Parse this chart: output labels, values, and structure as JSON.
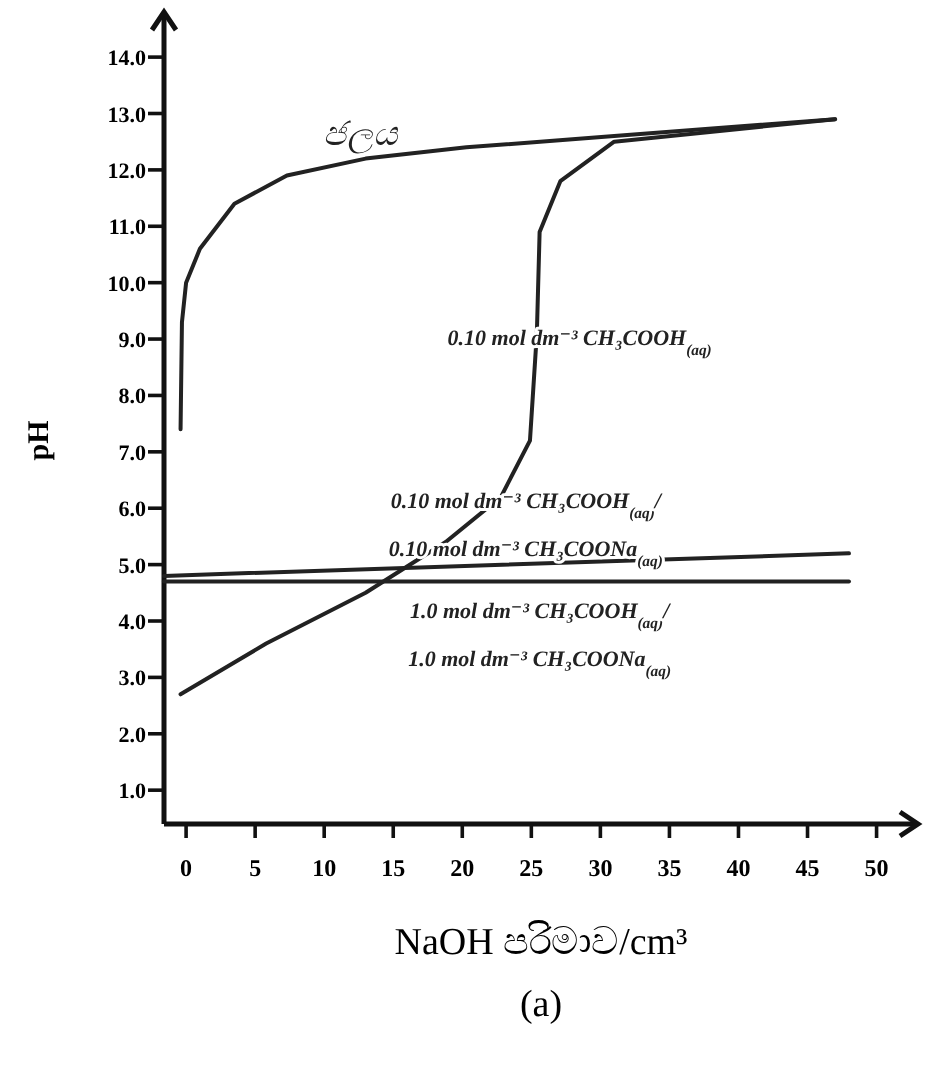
{
  "chart_data": {
    "type": "line",
    "xlabel": "NaOH පරිමාව/cm³",
    "ylabel": "pH",
    "annotations": [
      "(a)"
    ],
    "xlim": [
      -1.6,
      53
    ],
    "ylim": [
      0.4,
      14.8
    ],
    "xticks": [
      0,
      5,
      10,
      15,
      20,
      25,
      30,
      35,
      40,
      45,
      50
    ],
    "yticks": [
      {
        "value": 1,
        "label": "1.0"
      },
      {
        "value": 2,
        "label": "2.0"
      },
      {
        "value": 3,
        "label": "3.0"
      },
      {
        "value": 4,
        "label": "4.0"
      },
      {
        "value": 5,
        "label": "5.0"
      },
      {
        "value": 6,
        "label": "6.0"
      },
      {
        "value": 7,
        "label": "7.0"
      },
      {
        "value": 8,
        "label": "8.0"
      },
      {
        "value": 9,
        "label": "9.0"
      },
      {
        "value": 10,
        "label": "10.0"
      },
      {
        "value": 11,
        "label": "11.0"
      },
      {
        "value": 12,
        "label": "12.0"
      },
      {
        "value": 13,
        "label": "13.0"
      },
      {
        "value": 14,
        "label": "14.0"
      }
    ],
    "series": [
      {
        "name": "ජලය",
        "color": "#222222",
        "x": [
          -0.4,
          -0.3,
          0,
          1,
          3.5,
          7.3,
          13,
          20.3,
          31,
          47
        ],
        "values": [
          7.4,
          9.3,
          10.0,
          10.6,
          11.4,
          11.9,
          12.2,
          12.4,
          12.6,
          12.9
        ]
      },
      {
        "name": "0.10 mol dm⁻³ CH₃COOH$_{(aq)}$",
        "color": "#222222",
        "x": [
          -0.4,
          5.8,
          13,
          18.8,
          22.8,
          24.9,
          25.4,
          25.6,
          27.1,
          31,
          47
        ],
        "values": [
          2.7,
          3.6,
          4.5,
          5.4,
          6.2,
          7.2,
          9.1,
          10.9,
          11.8,
          12.5,
          12.9
        ]
      },
      {
        "name": "0.10 mol dm⁻³ CH₃COOH$_{(aq)}$/\n0.10 mol dm⁻³ CH₃COONa$_{(aq)}$",
        "color": "#222222",
        "x": [
          -1.6,
          48
        ],
        "values": [
          4.8,
          5.2
        ]
      },
      {
        "name": "1.0 mol dm⁻³ CH₃COOH$_{(aq)}$/\n1.0 mol dm⁻³ CH₃COONa$_{(aq)}$",
        "color": "#222222",
        "x": [
          -1.6,
          48
        ],
        "values": [
          4.7,
          4.7
        ]
      }
    ]
  }
}
